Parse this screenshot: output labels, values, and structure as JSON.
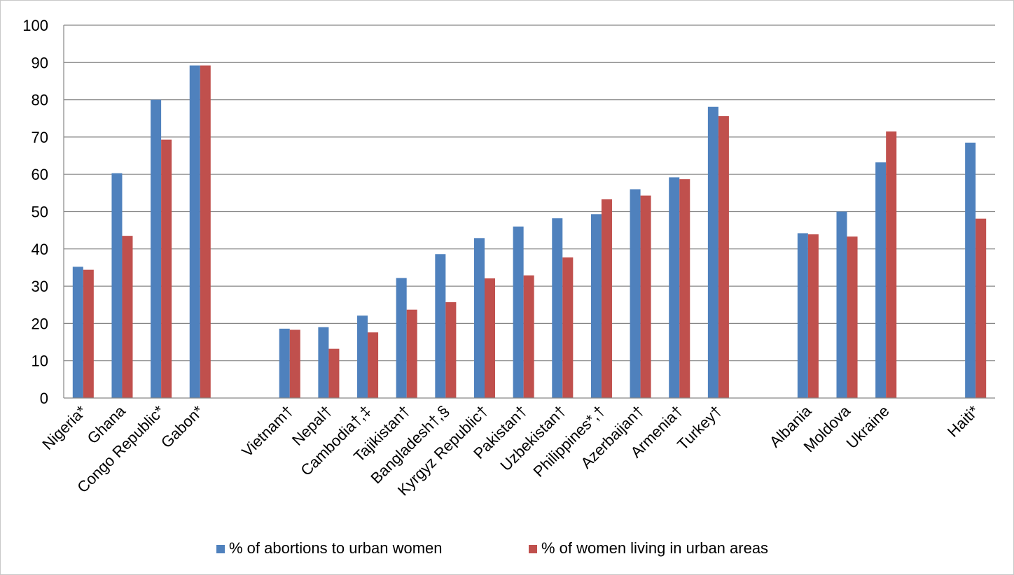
{
  "chart_data": {
    "type": "bar",
    "title": "",
    "xlabel": "",
    "ylabel": "",
    "ylim": [
      0,
      100
    ],
    "yticks": [
      0,
      10,
      20,
      30,
      40,
      50,
      60,
      70,
      80,
      90,
      100
    ],
    "grid": true,
    "legend_position": "bottom",
    "groups": [
      {
        "categories": [
          "Nigeria*",
          "Ghana",
          "Congo Republic*",
          "Gabon*"
        ]
      },
      {
        "categories": [
          "Vietnam†",
          "Nepal†",
          "Cambodia†,‡",
          "Tajikistan†",
          "Bangladesh†,§",
          "Kyrgyz Republic†",
          "Pakistan†",
          "Uzbekistan†",
          "Philippines*,†",
          "Azerbaijan†",
          "Armenia†",
          "Turkey†"
        ]
      },
      {
        "categories": [
          "Albania",
          "Moldova",
          "Ukraine"
        ]
      },
      {
        "categories": [
          "Haiti*"
        ]
      }
    ],
    "categories": [
      "Nigeria*",
      "Ghana",
      "Congo Republic*",
      "Gabon*",
      "Vietnam†",
      "Nepal†",
      "Cambodia†,‡",
      "Tajikistan†",
      "Bangladesh†,§",
      "Kyrgyz Republic†",
      "Pakistan†",
      "Uzbekistan†",
      "Philippines*,†",
      "Azerbaijan†",
      "Armenia†",
      "Turkey†",
      "Albania",
      "Moldova",
      "Ukraine",
      "Haiti*"
    ],
    "series": [
      {
        "name": "% of abortions to urban women",
        "color": "#4f81bd",
        "values": [
          35.2,
          60.3,
          80.0,
          89.2,
          18.6,
          19.0,
          22.1,
          32.2,
          38.6,
          42.9,
          46.0,
          48.2,
          49.3,
          56.0,
          59.2,
          78.1,
          44.2,
          50.0,
          63.2,
          68.5
        ]
      },
      {
        "name": "% of women living in urban areas",
        "color": "#c0504d",
        "values": [
          34.4,
          43.5,
          69.3,
          89.2,
          18.3,
          13.2,
          17.6,
          23.7,
          25.7,
          32.1,
          32.9,
          37.7,
          53.3,
          54.3,
          58.7,
          75.6,
          43.9,
          43.3,
          71.5,
          48.1
        ]
      }
    ]
  }
}
